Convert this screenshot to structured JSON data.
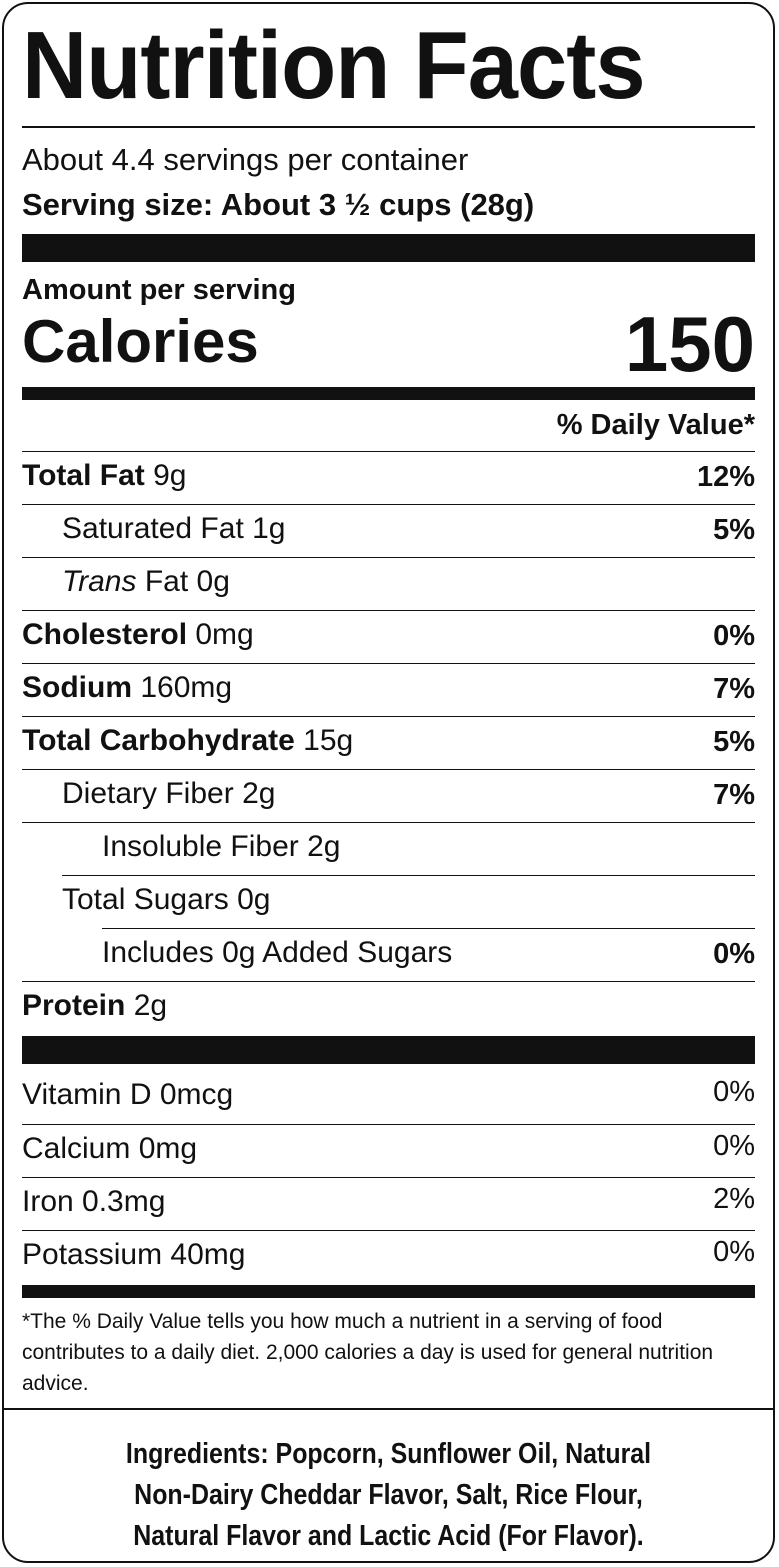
{
  "label": {
    "title": "Nutrition Facts",
    "servings_per_container": "About 4.4 servings per container",
    "serving_size": "Serving size: About 3 ½ cups (28g)",
    "amount_per_serving": "Amount per serving",
    "calories_label": "Calories",
    "calories_value": "150",
    "daily_value_header": "% Daily Value*",
    "nutrients": [
      {
        "name": "Total Fat",
        "amount": "9g",
        "dv": "12%"
      },
      {
        "name": "Saturated Fat",
        "amount": "1g",
        "dv": "5%"
      },
      {
        "name_italic": "Trans",
        "name": "Fat",
        "amount": "0g",
        "dv": ""
      },
      {
        "name": "Cholesterol",
        "amount": "0mg",
        "dv": "0%"
      },
      {
        "name": "Sodium",
        "amount": "160mg",
        "dv": "7%"
      },
      {
        "name": "Total Carbohydrate",
        "amount": "15g",
        "dv": "5%"
      },
      {
        "name": "Dietary Fiber",
        "amount": "2g",
        "dv": "7%"
      },
      {
        "name": "Insoluble Fiber",
        "amount": "2g",
        "dv": ""
      },
      {
        "name": "Total Sugars",
        "amount": "0g",
        "dv": ""
      },
      {
        "name": "Includes 0g Added Sugars",
        "amount": "",
        "dv": "0%"
      },
      {
        "name": "Protein",
        "amount": "2g",
        "dv": ""
      }
    ],
    "vitamins": [
      {
        "text": "Vitamin D 0mcg",
        "dv": "0%"
      },
      {
        "text": "Calcium 0mg",
        "dv": "0%"
      },
      {
        "text": "Iron 0.3mg",
        "dv": "2%"
      },
      {
        "text": "Potassium 40mg",
        "dv": "0%"
      }
    ],
    "footnote": "*The % Daily Value tells you how much a nutrient in a serving of food contributes to a daily diet. 2,000 calories a day is used for general nutrition advice.",
    "ingredients": [
      "Ingredients: Popcorn, Sunflower Oil, Natural",
      "Non-Dairy Cheddar Flavor, Salt, Rice Flour,",
      "Natural Flavor and Lactic Acid (For Flavor)."
    ]
  }
}
